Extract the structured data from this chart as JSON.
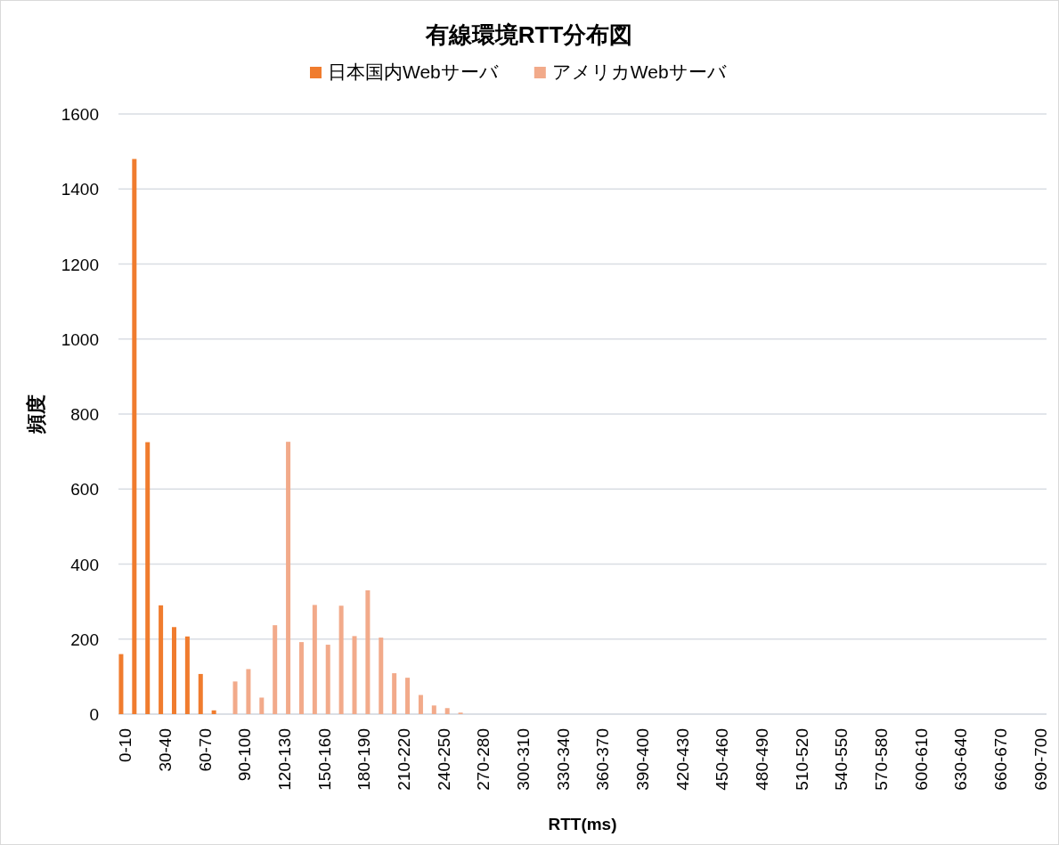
{
  "chart_data": {
    "type": "bar",
    "title": "有線環境RTT分布図",
    "xlabel": "RTT(ms)",
    "ylabel": "頻度",
    "categories": [
      "0-10",
      null,
      null,
      "30-40",
      null,
      null,
      "60-70",
      null,
      null,
      "90-100",
      null,
      null,
      "120-130",
      null,
      null,
      "150-160",
      null,
      null,
      "180-190",
      null,
      null,
      "210-220",
      null,
      null,
      "240-250",
      null,
      null,
      "270-280",
      null,
      null,
      "300-310",
      null,
      null,
      "330-340",
      null,
      null,
      "360-370",
      null,
      null,
      "390-400",
      null,
      null,
      "420-430",
      null,
      null,
      "450-460",
      null,
      null,
      "480-490",
      null,
      null,
      "510-520",
      null,
      null,
      "540-550",
      null,
      null,
      "570-580",
      null,
      null,
      "600-610",
      null,
      null,
      "630-640",
      null,
      null,
      "660-670",
      null,
      null,
      "690-700"
    ],
    "series": [
      {
        "name": "日本国内Webサーバ",
        "color": "#f07c2e",
        "values": [
          160,
          1480,
          725,
          290,
          232,
          207,
          107,
          10,
          0,
          0,
          0,
          0,
          0,
          0,
          0,
          0,
          0,
          0,
          0,
          0,
          0,
          0,
          0,
          0,
          0,
          0,
          0,
          0,
          0,
          0,
          0,
          0,
          0,
          0,
          0,
          0,
          0,
          0,
          0,
          0,
          0,
          0,
          0,
          0,
          0,
          0,
          0,
          0,
          0,
          0,
          0,
          0,
          0,
          0,
          0,
          0,
          0,
          0,
          0,
          0,
          0,
          0,
          0,
          0,
          0,
          0,
          0,
          0,
          0,
          0
        ]
      },
      {
        "name": "アメリカWebサーバ",
        "color": "#f2aa8a",
        "values": [
          0,
          0,
          0,
          0,
          0,
          0,
          0,
          0,
          87,
          120,
          44,
          237,
          726,
          192,
          291,
          185,
          289,
          208,
          330,
          204,
          109,
          97,
          51,
          23,
          16,
          4,
          0,
          0,
          0,
          0,
          0,
          0,
          0,
          0,
          0,
          0,
          0,
          0,
          0,
          0,
          0,
          0,
          0,
          0,
          0,
          0,
          0,
          0,
          0,
          0,
          0,
          0,
          0,
          0,
          0,
          0,
          0,
          0,
          0,
          0,
          0,
          0,
          0,
          0,
          0,
          0,
          0,
          0,
          0,
          0
        ]
      }
    ],
    "ylim": [
      0,
      1600
    ],
    "yticks": [
      0,
      200,
      400,
      600,
      800,
      1000,
      1200,
      1400,
      1600
    ],
    "grid": "y",
    "legend": "top"
  }
}
